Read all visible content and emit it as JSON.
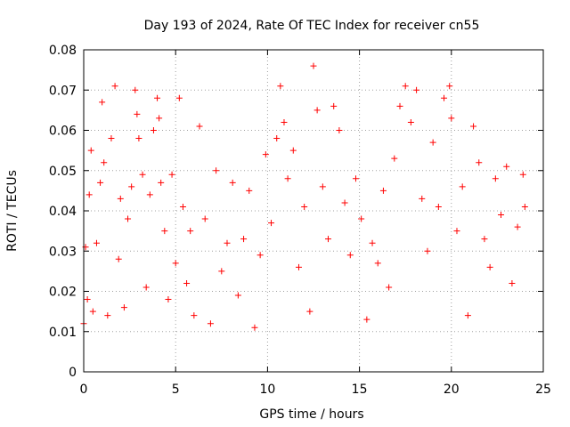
{
  "chart_data": {
    "type": "scatter",
    "title": "Day 193 of 2024, Rate Of TEC Index for receiver cn55",
    "xlabel": "GPS time / hours",
    "ylabel": "ROTI / TECUs",
    "xlim": [
      0,
      25
    ],
    "ylim": [
      0,
      0.08
    ],
    "x_ticks": [
      0,
      5,
      10,
      15,
      20,
      25
    ],
    "x_tick_labels": [
      "0",
      "5",
      "10",
      "15",
      "20",
      "25"
    ],
    "y_ticks": [
      0,
      0.01,
      0.02,
      0.03,
      0.04,
      0.05,
      0.06,
      0.07,
      0.08
    ],
    "y_tick_labels": [
      "0",
      "0.01",
      "0.02",
      "0.03",
      "0.04",
      "0.05",
      "0.06",
      "0.07",
      "0.08"
    ],
    "grid": true,
    "marker": "+",
    "color": "#ff0000",
    "series": [
      {
        "x": [
          0.0,
          0.1,
          0.2,
          0.3,
          0.4,
          0.5,
          0.7,
          0.9,
          1.0,
          1.1,
          1.3,
          1.5,
          1.7,
          1.9,
          2.0,
          2.2,
          2.4,
          2.6,
          2.8,
          2.9,
          3.0,
          3.2,
          3.4,
          3.6,
          3.8,
          4.0,
          4.1,
          4.2,
          4.4,
          4.6,
          4.8,
          5.0,
          5.2,
          5.4,
          5.6,
          5.8,
          6.0,
          6.3,
          6.6,
          6.9,
          7.2,
          7.5,
          7.8,
          8.1,
          8.4,
          8.7,
          9.0,
          9.3,
          9.6,
          9.9,
          10.2,
          10.5,
          10.7,
          10.9,
          11.1,
          11.4,
          11.7,
          12.0,
          12.3,
          12.5,
          12.7,
          13.0,
          13.3,
          13.6,
          13.9,
          14.2,
          14.5,
          14.8,
          15.1,
          15.4,
          15.7,
          16.0,
          16.3,
          16.6,
          16.9,
          17.2,
          17.5,
          17.8,
          18.1,
          18.4,
          18.7,
          19.0,
          19.3,
          19.6,
          19.9,
          20.0,
          20.3,
          20.6,
          20.9,
          21.2,
          21.5,
          21.8,
          22.1,
          22.4,
          22.7,
          23.0,
          23.3,
          23.6,
          23.9,
          24.0
        ],
        "y": [
          0.012,
          0.031,
          0.018,
          0.044,
          0.055,
          0.015,
          0.032,
          0.047,
          0.067,
          0.052,
          0.014,
          0.058,
          0.071,
          0.028,
          0.043,
          0.016,
          0.038,
          0.046,
          0.07,
          0.064,
          0.058,
          0.049,
          0.021,
          0.044,
          0.06,
          0.068,
          0.063,
          0.047,
          0.035,
          0.018,
          0.049,
          0.027,
          0.068,
          0.041,
          0.022,
          0.035,
          0.014,
          0.061,
          0.038,
          0.012,
          0.05,
          0.025,
          0.032,
          0.047,
          0.019,
          0.033,
          0.045,
          0.011,
          0.029,
          0.054,
          0.037,
          0.058,
          0.071,
          0.062,
          0.048,
          0.055,
          0.026,
          0.041,
          0.015,
          0.076,
          0.065,
          0.046,
          0.033,
          0.066,
          0.06,
          0.042,
          0.029,
          0.048,
          0.038,
          0.013,
          0.032,
          0.027,
          0.045,
          0.021,
          0.053,
          0.066,
          0.071,
          0.062,
          0.07,
          0.043,
          0.03,
          0.057,
          0.041,
          0.068,
          0.071,
          0.063,
          0.035,
          0.046,
          0.014,
          0.061,
          0.052,
          0.033,
          0.026,
          0.048,
          0.039,
          0.051,
          0.022,
          0.036,
          0.049,
          0.041
        ]
      }
    ]
  }
}
